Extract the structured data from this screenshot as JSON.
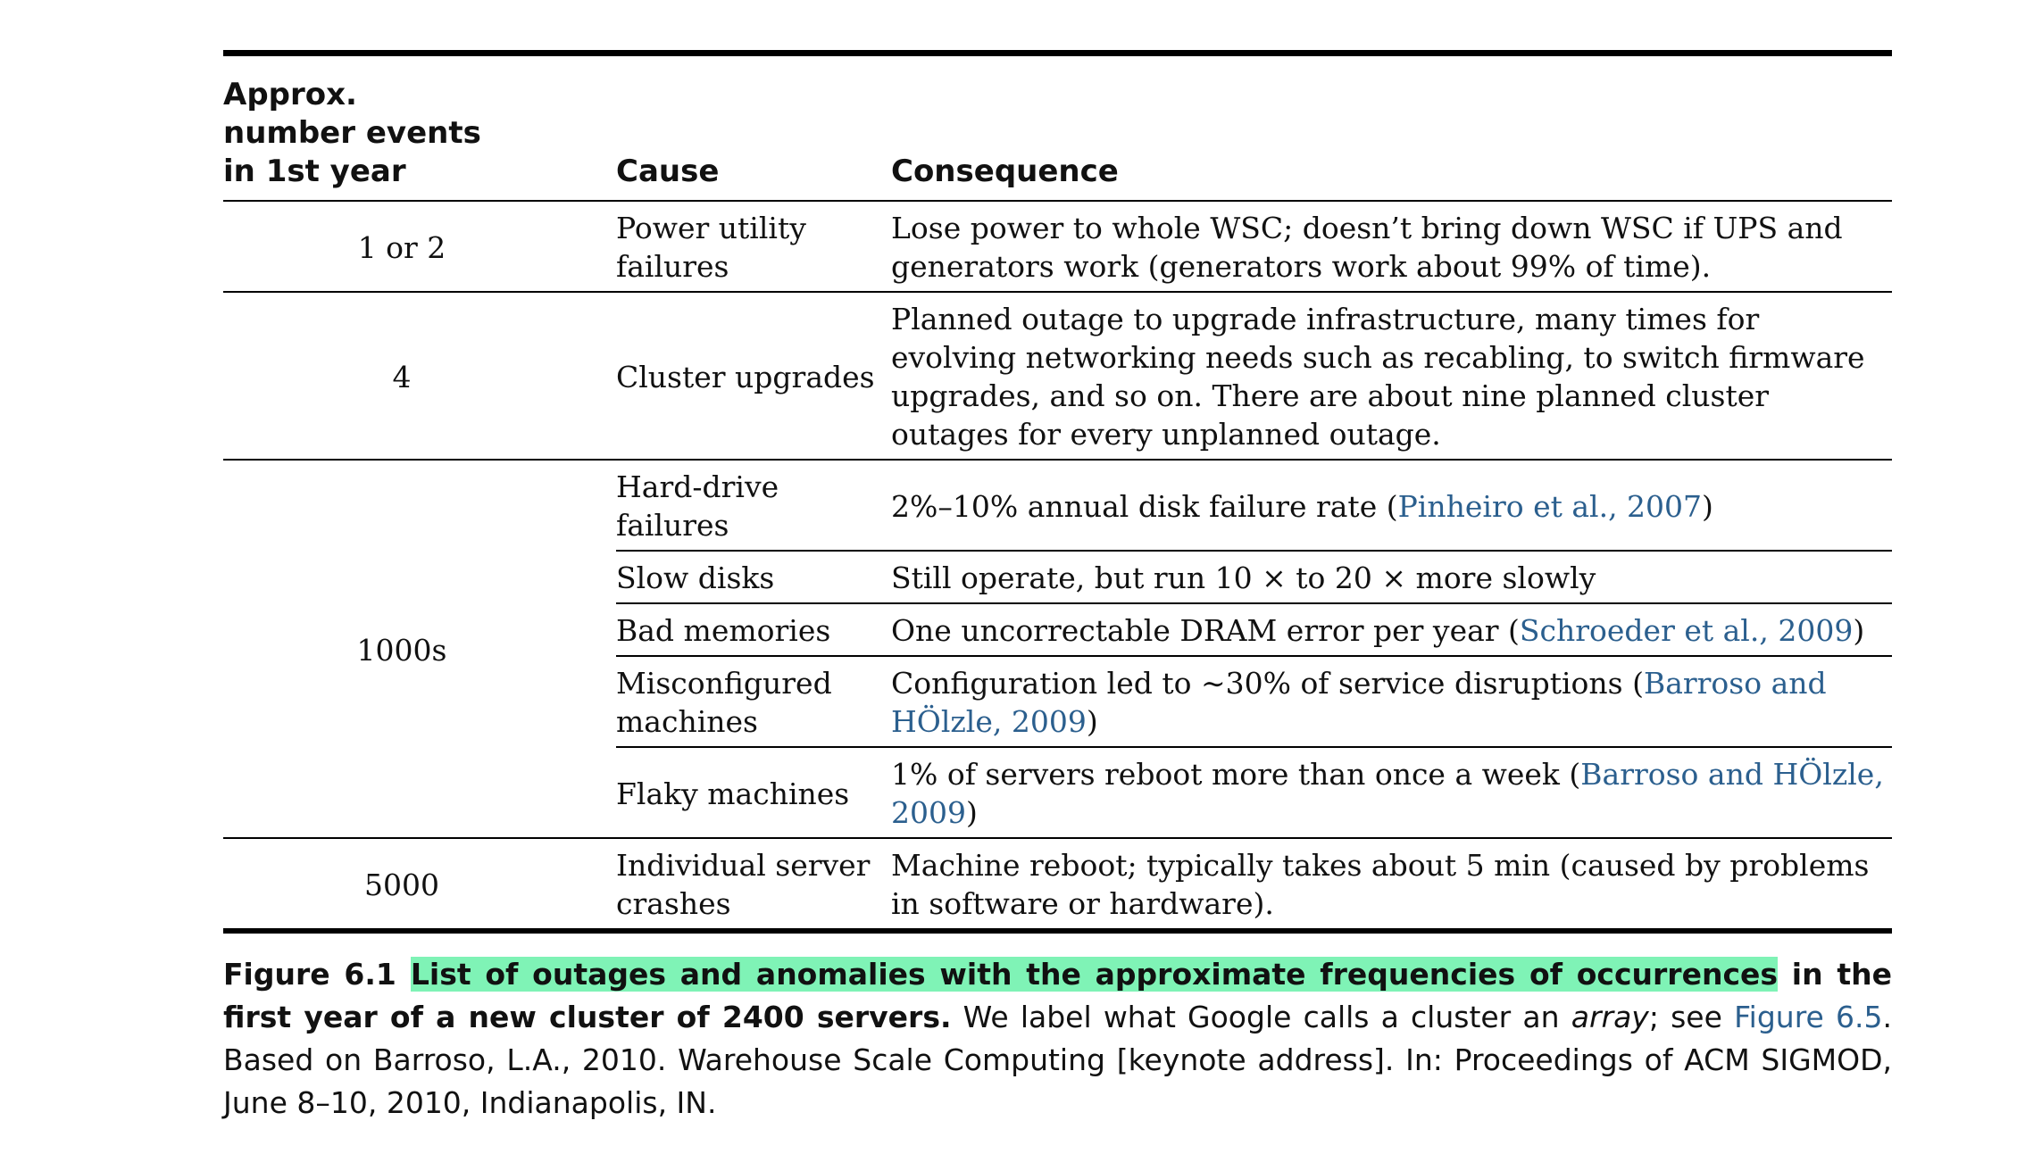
{
  "table": {
    "headers": {
      "freq": "Approx. number events in 1st year",
      "cause": "Cause",
      "consequence": "Consequence"
    },
    "rows": [
      {
        "freq": "1 or 2",
        "cause": "Power utility failures",
        "consequence": "Lose power to whole WSC; doesn’t bring down WSC if UPS and generators work (generators work about 99% of time).",
        "consequence_tail": ""
      },
      {
        "freq": "4",
        "cause": "Cluster upgrades",
        "consequence": "Planned outage to upgrade infrastructure, many times for evolving networking needs such as recabling, to switch firmware upgrades, and so on. There are about nine planned cluster outages for every unplanned outage.",
        "consequence_tail": ""
      },
      {
        "freq": "1000s",
        "cause": "Hard-drive failures",
        "consequence": "2%–10% annual disk failure rate (",
        "cite": "Pinheiro et al., 2007",
        "consequence_tail": ")"
      },
      {
        "freq": "",
        "cause": "Slow disks",
        "consequence": "Still operate, but run 10 × to 20 × more slowly",
        "consequence_tail": ""
      },
      {
        "freq": "",
        "cause": "Bad memories",
        "consequence": "One uncorrectable DRAM error per year (",
        "cite": "Schroeder et al., 2009",
        "consequence_tail": ")"
      },
      {
        "freq": "",
        "cause": "Misconfigured machines",
        "consequence": "Configuration led to ∼30% of service disruptions (",
        "cite": "Barroso and HÖlzle, 2009",
        "consequence_tail": ")"
      },
      {
        "freq": "",
        "cause": "Flaky machines",
        "consequence": "1% of servers reboot more than once a week (",
        "cite": "Barroso and HÖlzle, 2009",
        "consequence_tail": ")"
      },
      {
        "freq": "5000",
        "cause": "Individual server crashes",
        "consequence": "Machine reboot; typically takes about 5 min (caused by problems in software or hardware).",
        "consequence_tail": ""
      }
    ]
  },
  "caption": {
    "label": "Figure 6.1",
    "highlighted": "List of outages and anomalies with the approximate frequencies of occurrences",
    "bold_rest": " in the first year of a new cluster of 2400 servers.",
    "text_1": " We label what Google calls a cluster an ",
    "italic": "array",
    "text_2": "; see ",
    "figure_link": "Figure 6.5",
    "text_3": ". Based on Barroso, L.A., 2010. Warehouse Scale Computing [keynote address]. In: Proceedings of ACM SIGMOD, June 8–10, 2010, Indianapolis, IN."
  },
  "colors": {
    "highlight": "#7ff3b6",
    "citation_link": "#2b5f8e"
  }
}
